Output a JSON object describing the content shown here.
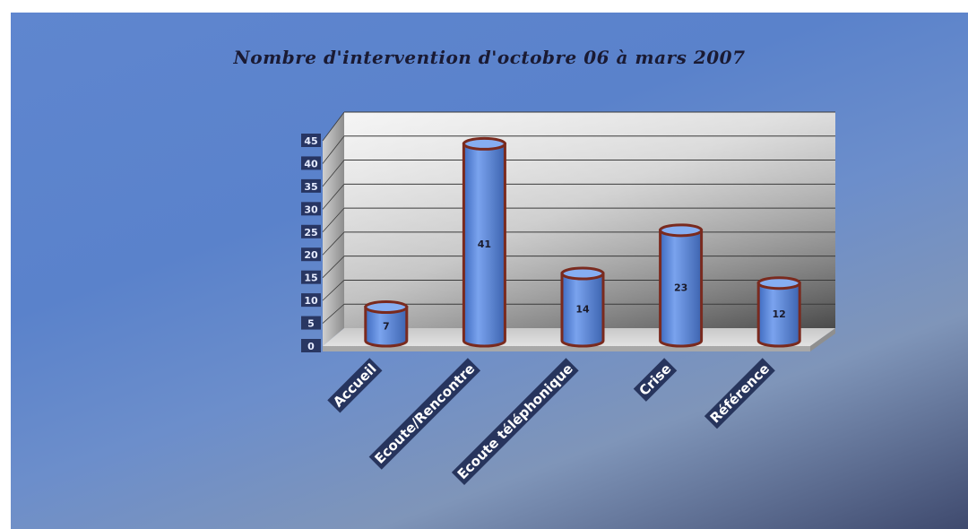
{
  "chart_data": {
    "type": "bar",
    "title": "Nombre d'intervention d'octobre 06 à mars 2007",
    "categories": [
      "Accueil",
      "Ecoute/Rencontre",
      "Ecoute téléphonique",
      "Crise",
      "Référence"
    ],
    "series": [
      {
        "values": [
          7,
          41,
          14,
          23,
          12
        ]
      }
    ],
    "data_labels": [
      "7",
      "41",
      "14",
      "23",
      "12"
    ],
    "ylim": [
      0,
      45
    ],
    "y_ticks": [
      "0",
      "5",
      "10",
      "15",
      "20",
      "25",
      "30",
      "35",
      "40",
      "45"
    ],
    "xlabel": "",
    "ylabel": "",
    "grid": true,
    "legend": "none",
    "style": "3d-cylinder",
    "colors": {
      "bar": "#5b86d8",
      "bar_outline": "#7a2a1e",
      "background": "#5f86cf",
      "wall": "#d9d9d9",
      "floor": "#cfcfcf"
    }
  }
}
